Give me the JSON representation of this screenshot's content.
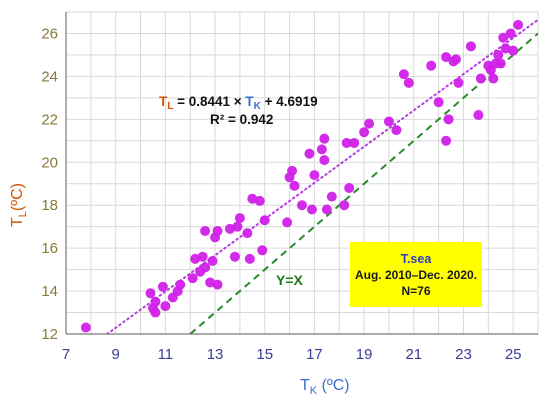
{
  "colors": {
    "points": "#d020e8",
    "fit_line": "#b43ce0",
    "identity_line": "#2a8a2a",
    "grid": "#d9d9d9",
    "axis": "#7a7a7a",
    "x_axis_label": "#3f6fd1",
    "y_axis_label": "#d35400",
    "info_box": "#ffff00"
  },
  "equation": {
    "tl_letter": "T",
    "tl_sub": "L",
    "mid": " = 0.8441 × ",
    "tk_letter": "T",
    "tk_sub": "K",
    "tail": " + 4.6919",
    "r2": "R² = 0.942"
  },
  "identity_label": "Y=X",
  "info_box": {
    "title": "T.sea",
    "period": "Aug. 2010–Dec. 2020.",
    "n": "N=76"
  },
  "chart_data": {
    "type": "scatter",
    "xlabel": {
      "letter": "T",
      "sub": "K",
      "unit": " (ºC)"
    },
    "ylabel": {
      "letter": "T",
      "sub": "L",
      "unit": "(ºC)"
    },
    "xlim": [
      7,
      26
    ],
    "ylim": [
      12,
      27
    ],
    "xticks": [
      7,
      9,
      11,
      13,
      15,
      17,
      19,
      21,
      23,
      25
    ],
    "yticks": [
      12,
      14,
      16,
      18,
      20,
      22,
      24,
      26
    ],
    "grid": true,
    "fit": {
      "slope": 0.8441,
      "intercept": 4.6919,
      "style": "dotted"
    },
    "identity": {
      "slope": 1,
      "intercept": 0,
      "style": "dashed"
    },
    "points": [
      [
        7.8,
        12.3
      ],
      [
        10.4,
        13.9
      ],
      [
        10.5,
        13.2
      ],
      [
        10.6,
        13.0
      ],
      [
        10.6,
        13.5
      ],
      [
        10.9,
        14.2
      ],
      [
        11.0,
        13.3
      ],
      [
        11.3,
        13.7
      ],
      [
        11.5,
        14.0
      ],
      [
        11.6,
        14.3
      ],
      [
        12.1,
        14.6
      ],
      [
        12.2,
        15.5
      ],
      [
        12.4,
        14.9
      ],
      [
        12.5,
        15.6
      ],
      [
        12.6,
        15.1
      ],
      [
        12.6,
        16.8
      ],
      [
        12.8,
        14.4
      ],
      [
        12.9,
        15.4
      ],
      [
        13.0,
        16.5
      ],
      [
        13.1,
        16.8
      ],
      [
        13.1,
        14.3
      ],
      [
        13.6,
        16.9
      ],
      [
        13.8,
        15.6
      ],
      [
        13.9,
        17.0
      ],
      [
        14.0,
        17.4
      ],
      [
        14.3,
        16.7
      ],
      [
        14.4,
        15.5
      ],
      [
        14.5,
        18.3
      ],
      [
        14.8,
        18.2
      ],
      [
        14.9,
        15.9
      ],
      [
        15.0,
        17.3
      ],
      [
        15.9,
        17.2
      ],
      [
        16.0,
        19.3
      ],
      [
        16.1,
        19.6
      ],
      [
        16.2,
        18.9
      ],
      [
        16.5,
        18.0
      ],
      [
        16.8,
        20.4
      ],
      [
        16.9,
        17.8
      ],
      [
        17.0,
        19.4
      ],
      [
        17.3,
        20.6
      ],
      [
        17.4,
        21.1
      ],
      [
        17.4,
        20.1
      ],
      [
        17.5,
        17.8
      ],
      [
        17.7,
        18.4
      ],
      [
        18.2,
        18.0
      ],
      [
        18.3,
        20.9
      ],
      [
        18.4,
        18.8
      ],
      [
        18.6,
        20.9
      ],
      [
        19.0,
        21.4
      ],
      [
        19.2,
        21.8
      ],
      [
        20.0,
        21.9
      ],
      [
        20.3,
        21.5
      ],
      [
        20.6,
        24.1
      ],
      [
        20.8,
        23.7
      ],
      [
        21.7,
        24.5
      ],
      [
        22.0,
        22.8
      ],
      [
        22.3,
        24.9
      ],
      [
        22.3,
        21.0
      ],
      [
        22.4,
        22.0
      ],
      [
        22.6,
        24.7
      ],
      [
        22.7,
        24.8
      ],
      [
        22.8,
        23.7
      ],
      [
        23.3,
        25.4
      ],
      [
        23.6,
        22.2
      ],
      [
        23.7,
        23.9
      ],
      [
        24.0,
        24.5
      ],
      [
        24.1,
        24.3
      ],
      [
        24.3,
        24.6
      ],
      [
        24.4,
        25.0
      ],
      [
        24.5,
        24.6
      ],
      [
        24.6,
        25.8
      ],
      [
        24.7,
        25.3
      ],
      [
        24.9,
        26.0
      ],
      [
        25.0,
        25.2
      ],
      [
        25.2,
        26.4
      ],
      [
        24.2,
        23.9
      ]
    ]
  }
}
